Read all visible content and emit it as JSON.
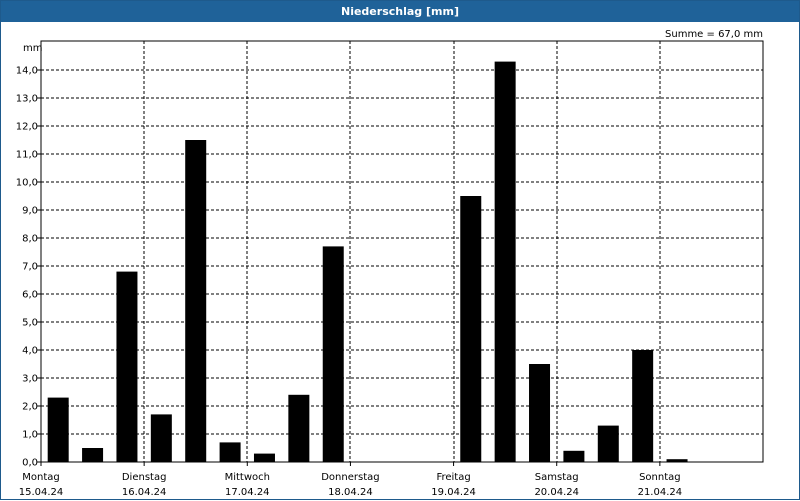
{
  "window": {
    "title": "Niederschlag [mm]"
  },
  "chart_data": {
    "type": "bar",
    "title": "Niederschlag [mm]",
    "ylabel": "mm",
    "annotation": "Summe = 67,0 mm",
    "ylim": [
      0,
      15
    ],
    "yticks": [
      "0,0",
      "1,0",
      "2,0",
      "3,0",
      "4,0",
      "5,0",
      "6,0",
      "7,0",
      "8,0",
      "9,0",
      "10,0",
      "11,0",
      "12,0",
      "13,0",
      "14,0"
    ],
    "grid": true,
    "days": [
      {
        "weekday": "Montag",
        "date": "15.04.24"
      },
      {
        "weekday": "Dienstag",
        "date": "16.04.24"
      },
      {
        "weekday": "Mittwoch",
        "date": "17.04.24"
      },
      {
        "weekday": "Donnerstag",
        "date": "18.04.24"
      },
      {
        "weekday": "Freitag",
        "date": "19.04.24"
      },
      {
        "weekday": "Samstag",
        "date": "20.04.24"
      },
      {
        "weekday": "Sonntag",
        "date": "21.04.24"
      }
    ],
    "bars_per_day": 3,
    "values": [
      2.3,
      0.5,
      6.8,
      1.7,
      11.5,
      0.7,
      0.3,
      2.4,
      7.7,
      0,
      0,
      0,
      9.5,
      14.3,
      3.5,
      0.4,
      1.3,
      4.0,
      0.1,
      0,
      0
    ],
    "bar_color": "#000000"
  }
}
